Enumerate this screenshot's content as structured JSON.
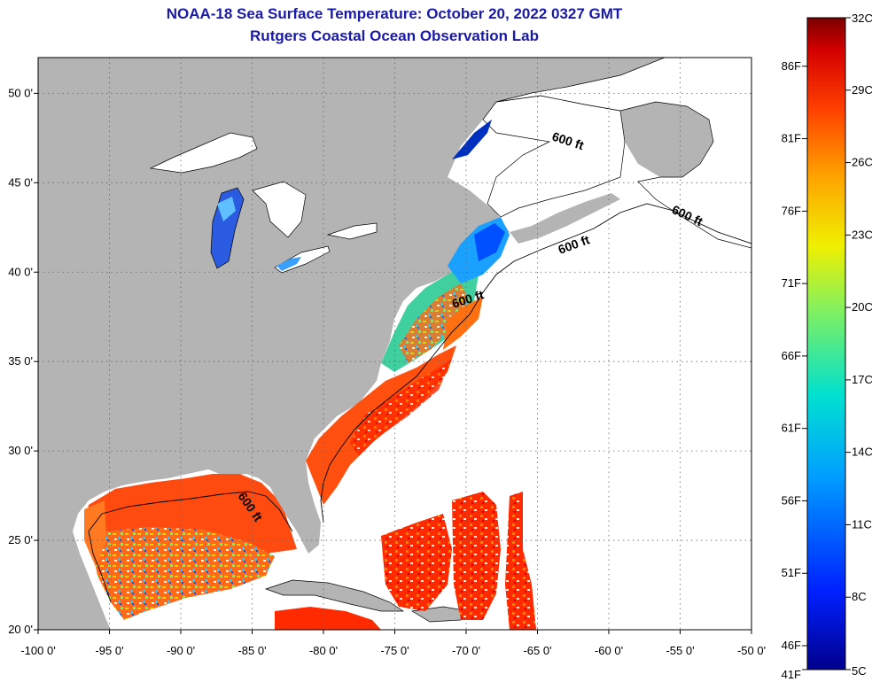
{
  "header": {
    "title": "NOAA-18 Sea Surface Temperature:  October 20, 2022 0327 GMT",
    "subtitle": "Rutgers Coastal Ocean Observation Lab"
  },
  "map": {
    "lon_range": [
      -100,
      -50
    ],
    "lat_range": [
      20,
      52
    ],
    "x_ticks": [
      "-100 0'",
      "-95 0'",
      "-90 0'",
      "-85 0'",
      "-80 0'",
      "-75 0'",
      "-70 0'",
      "-65 0'",
      "-60 0'",
      "-55 0'",
      "-50 0'"
    ],
    "y_ticks": [
      "20 0'",
      "25 0'",
      "30 0'",
      "35 0'",
      "40 0'",
      "45 0'",
      "50 0'"
    ],
    "contour_label": "600 ft",
    "colors": {
      "land": "#b4b4b4",
      "no_data": "#ffffff",
      "grid": "#666666"
    }
  },
  "colorbar": {
    "celsius": [
      "32C",
      "29C",
      "26C",
      "23C",
      "20C",
      "17C",
      "14C",
      "11C",
      "8C",
      "5C"
    ],
    "fahrenheit": [
      "86F",
      "81F",
      "76F",
      "71F",
      "66F",
      "61F",
      "56F",
      "51F",
      "46F",
      "41F"
    ],
    "colors": [
      "#7a0000",
      "#d40000",
      "#ff5000",
      "#ffa000",
      "#f0f000",
      "#80f060",
      "#00e0d0",
      "#00a0ff",
      "#0040ff",
      "#00008c"
    ]
  }
}
